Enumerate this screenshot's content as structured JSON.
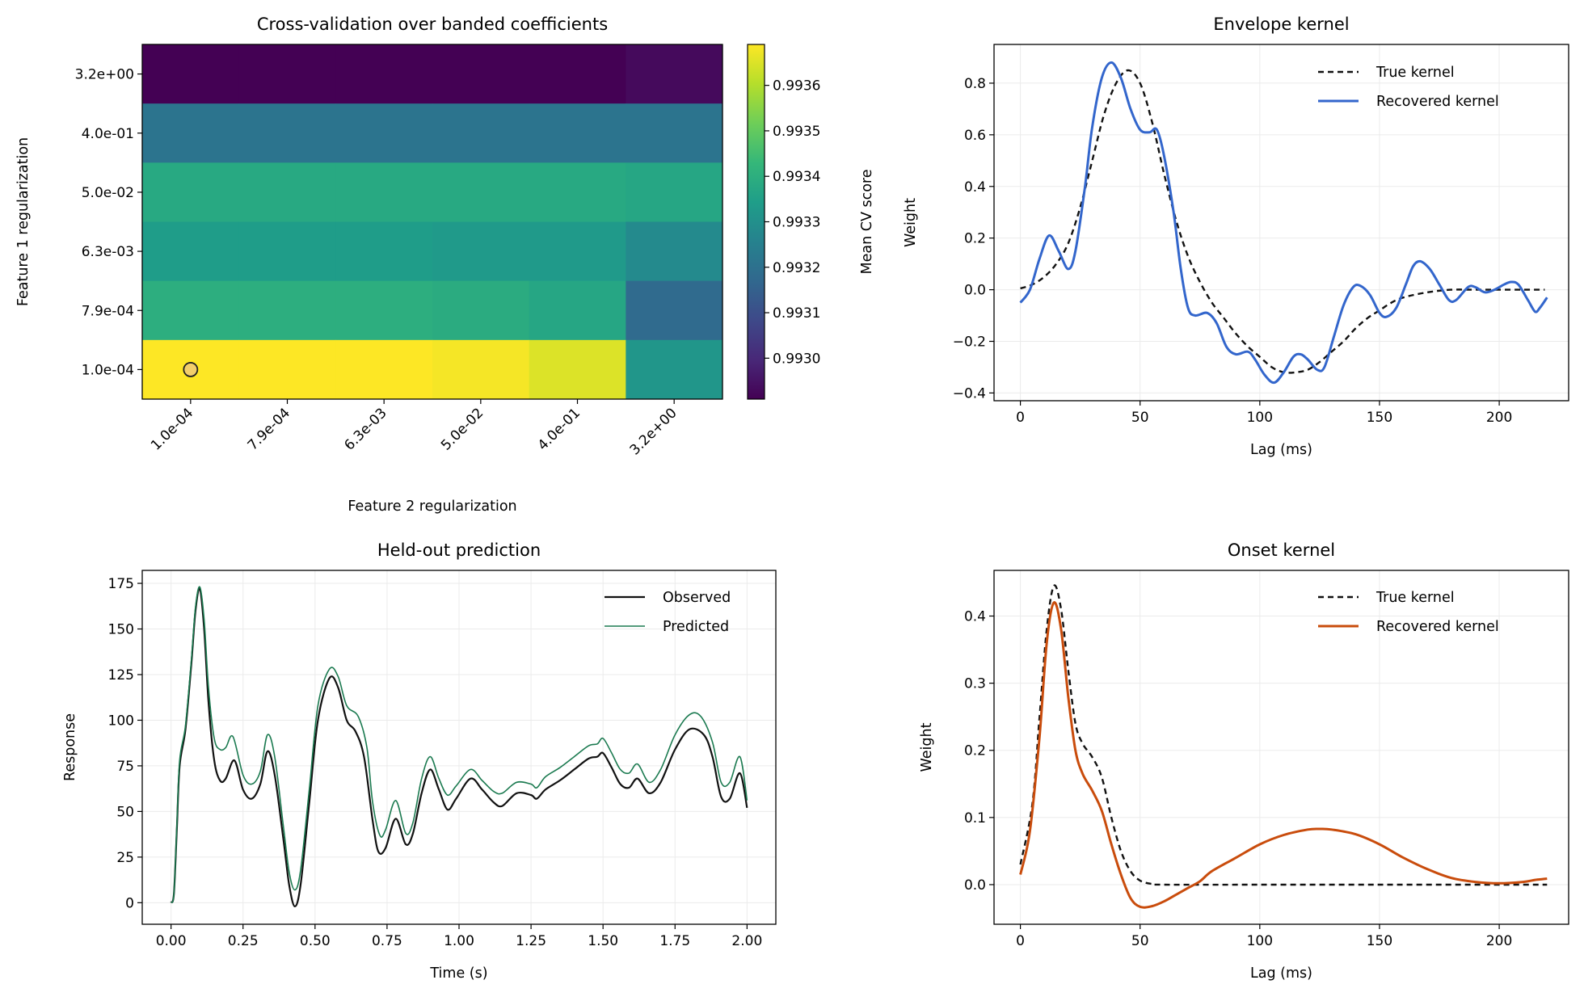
{
  "chart_data": [
    {
      "type": "heatmap",
      "title": "Cross-validation over banded coefficients",
      "xlabel": "Feature 2 regularization",
      "ylabel": "Feature 1 regularization",
      "x_categories": [
        "1.0e-04",
        "7.9e-04",
        "6.3e-03",
        "5.0e-02",
        "4.0e-01",
        "3.2e+00"
      ],
      "y_categories": [
        "3.2e+00",
        "4.0e-01",
        "5.0e-02",
        "6.3e-03",
        "7.9e-04",
        "1.0e-04"
      ],
      "values": [
        [
          0.99291,
          0.99291,
          0.99291,
          0.99291,
          0.99291,
          0.99293
        ],
        [
          0.99321,
          0.99321,
          0.99321,
          0.99321,
          0.99321,
          0.99321
        ],
        [
          0.99338,
          0.99338,
          0.99338,
          0.99338,
          0.99338,
          0.99337
        ],
        [
          0.99334,
          0.99334,
          0.99334,
          0.99333,
          0.99333,
          0.99328
        ],
        [
          0.9934,
          0.9934,
          0.9934,
          0.99339,
          0.99337,
          0.99318
        ],
        [
          0.99369,
          0.99369,
          0.99369,
          0.99368,
          0.99365,
          0.99332
        ]
      ],
      "best_marker": {
        "x": "1.0e-04",
        "y": "1.0e-04",
        "color": "#f2cf6b"
      },
      "colormap": "viridis",
      "colorbar": {
        "label": "Mean CV score",
        "range": [
          0.99291,
          0.99369
        ],
        "ticks": [
          "0.9930",
          "0.9931",
          "0.9932",
          "0.9933",
          "0.9934",
          "0.9935",
          "0.9936"
        ]
      }
    },
    {
      "type": "line",
      "title": "Envelope kernel",
      "xlabel": "Lag (ms)",
      "ylabel": "Weight",
      "xlim": [
        -11,
        229
      ],
      "ylim": [
        -0.43,
        0.95
      ],
      "xticks": [
        "0",
        "50",
        "100",
        "150",
        "200"
      ],
      "yticks": [
        "−0.4",
        "−0.2",
        "0.0",
        "0.2",
        "0.4",
        "0.6",
        "0.8"
      ],
      "grid": true,
      "legend": "top-right",
      "series": [
        {
          "name": "True kernel",
          "color": "#111111",
          "style": "dashed",
          "x": [
            0,
            5,
            10,
            15,
            20,
            25,
            30,
            35,
            40,
            45,
            50,
            55,
            60,
            65,
            70,
            75,
            80,
            85,
            90,
            95,
            100,
            105,
            110,
            115,
            120,
            125,
            130,
            135,
            140,
            145,
            150,
            155,
            160,
            170,
            180,
            190,
            200,
            210,
            219
          ],
          "y": [
            0.005,
            0.02,
            0.05,
            0.1,
            0.18,
            0.32,
            0.5,
            0.68,
            0.8,
            0.85,
            0.8,
            0.65,
            0.45,
            0.27,
            0.13,
            0.03,
            -0.05,
            -0.11,
            -0.17,
            -0.22,
            -0.26,
            -0.3,
            -0.32,
            -0.32,
            -0.31,
            -0.28,
            -0.24,
            -0.2,
            -0.15,
            -0.11,
            -0.08,
            -0.05,
            -0.03,
            -0.01,
            0,
            0,
            0,
            0,
            0
          ]
        },
        {
          "name": "Recovered kernel",
          "color": "#3366cc",
          "style": "solid",
          "x": [
            0,
            4,
            8,
            12,
            16,
            20,
            23,
            27,
            30,
            34,
            38,
            42,
            46,
            50,
            54,
            57,
            60,
            64,
            67,
            70,
            73,
            78,
            82,
            86,
            90,
            95,
            98,
            102,
            106,
            110,
            114,
            117,
            120,
            124,
            127,
            131,
            135,
            139,
            142,
            146,
            150,
            153,
            157,
            161,
            164,
            167,
            171,
            175,
            179,
            182,
            187,
            190,
            194,
            198,
            202,
            205,
            208,
            212,
            215,
            217,
            220
          ],
          "y": [
            -0.05,
            0.0,
            0.12,
            0.21,
            0.15,
            0.08,
            0.15,
            0.4,
            0.63,
            0.82,
            0.88,
            0.82,
            0.7,
            0.62,
            0.61,
            0.62,
            0.52,
            0.3,
            0.08,
            -0.07,
            -0.1,
            -0.09,
            -0.13,
            -0.22,
            -0.25,
            -0.24,
            -0.27,
            -0.33,
            -0.36,
            -0.32,
            -0.26,
            -0.25,
            -0.27,
            -0.31,
            -0.3,
            -0.18,
            -0.06,
            0.01,
            0.015,
            -0.02,
            -0.09,
            -0.105,
            -0.07,
            0.02,
            0.09,
            0.11,
            0.08,
            0.02,
            -0.04,
            -0.04,
            0.01,
            0.01,
            -0.01,
            0.0,
            0.02,
            0.03,
            0.02,
            -0.04,
            -0.085,
            -0.07,
            -0.03
          ]
        }
      ]
    },
    {
      "type": "line",
      "title": "Held-out prediction",
      "xlabel": "Time (s)",
      "ylabel": "Response",
      "xlim": [
        -0.1,
        2.1
      ],
      "ylim": [
        -11.8,
        182.1
      ],
      "xticks": [
        "0.00",
        "0.25",
        "0.50",
        "0.75",
        "1.00",
        "1.25",
        "1.50",
        "1.75",
        "2.00"
      ],
      "yticks": [
        "0",
        "25",
        "50",
        "75",
        "100",
        "125",
        "150",
        "175"
      ],
      "grid": true,
      "legend": "top-right",
      "series": [
        {
          "name": "Observed",
          "color": "#111111",
          "style": "solid",
          "x": [
            0,
            0.01,
            0.02,
            0.03,
            0.05,
            0.07,
            0.085,
            0.1,
            0.115,
            0.13,
            0.15,
            0.17,
            0.19,
            0.22,
            0.25,
            0.28,
            0.31,
            0.335,
            0.36,
            0.39,
            0.41,
            0.43,
            0.45,
            0.48,
            0.51,
            0.55,
            0.58,
            0.61,
            0.64,
            0.67,
            0.7,
            0.72,
            0.745,
            0.78,
            0.815,
            0.84,
            0.87,
            0.9,
            0.93,
            0.96,
            0.99,
            1.04,
            1.08,
            1.12,
            1.15,
            1.2,
            1.25,
            1.27,
            1.3,
            1.35,
            1.4,
            1.45,
            1.48,
            1.5,
            1.53,
            1.56,
            1.59,
            1.62,
            1.66,
            1.7,
            1.75,
            1.8,
            1.85,
            1.88,
            1.91,
            1.94,
            1.975,
            2.0
          ],
          "y": [
            0,
            5,
            40,
            75,
            95,
            130,
            160,
            172,
            150,
            110,
            78,
            67,
            68,
            78,
            62,
            57,
            65,
            83,
            70,
            35,
            10,
            -2,
            10,
            55,
            100,
            123,
            118,
            100,
            94,
            80,
            45,
            28,
            30,
            46,
            32,
            38,
            60,
            73,
            62,
            51,
            57,
            68,
            62,
            55,
            53,
            60,
            59,
            57,
            62,
            67,
            73,
            79,
            80,
            82,
            74,
            65,
            63,
            68,
            60,
            66,
            84,
            95,
            92,
            80,
            58,
            57,
            71,
            52
          ]
        },
        {
          "name": "Predicted",
          "color": "#1b7a50",
          "style": "solid",
          "x": [
            0,
            0.01,
            0.02,
            0.03,
            0.05,
            0.07,
            0.085,
            0.1,
            0.115,
            0.13,
            0.15,
            0.17,
            0.19,
            0.215,
            0.25,
            0.28,
            0.31,
            0.335,
            0.36,
            0.39,
            0.41,
            0.43,
            0.45,
            0.48,
            0.51,
            0.55,
            0.58,
            0.61,
            0.65,
            0.68,
            0.7,
            0.725,
            0.745,
            0.78,
            0.815,
            0.84,
            0.87,
            0.9,
            0.93,
            0.96,
            0.99,
            1.04,
            1.08,
            1.12,
            1.15,
            1.2,
            1.25,
            1.27,
            1.3,
            1.35,
            1.4,
            1.45,
            1.48,
            1.5,
            1.53,
            1.56,
            1.59,
            1.62,
            1.66,
            1.7,
            1.75,
            1.8,
            1.84,
            1.88,
            1.91,
            1.94,
            1.975,
            2.0
          ],
          "y": [
            0,
            5,
            42,
            78,
            97,
            132,
            162,
            173,
            155,
            118,
            90,
            84,
            85,
            91,
            70,
            65,
            72,
            92,
            80,
            42,
            17,
            7,
            18,
            62,
            108,
            128,
            124,
            108,
            102,
            85,
            55,
            37,
            40,
            56,
            38,
            44,
            68,
            80,
            68,
            59,
            64,
            73,
            67,
            61,
            60,
            66,
            65,
            63,
            69,
            74,
            80,
            86,
            87,
            90,
            82,
            73,
            71,
            76,
            66,
            73,
            92,
            103,
            102,
            88,
            66,
            66,
            80,
            56
          ]
        }
      ]
    },
    {
      "type": "line",
      "title": "Onset kernel",
      "xlabel": "Lag (ms)",
      "ylabel": "Weight",
      "xlim": [
        -11,
        229
      ],
      "ylim": [
        -0.059,
        0.468
      ],
      "xticks": [
        "0",
        "50",
        "100",
        "150",
        "200"
      ],
      "yticks": [
        "0.0",
        "0.1",
        "0.2",
        "0.3",
        "0.4"
      ],
      "grid": true,
      "legend": "top-right",
      "series": [
        {
          "name": "True kernel",
          "color": "#111111",
          "style": "dashed",
          "x": [
            0,
            5,
            8,
            11,
            14,
            17,
            20,
            23,
            26,
            30,
            34,
            38,
            42,
            46,
            50,
            55,
            60,
            100,
            150,
            200,
            220
          ],
          "y": [
            0.03,
            0.12,
            0.25,
            0.38,
            0.445,
            0.41,
            0.32,
            0.24,
            0.21,
            0.19,
            0.16,
            0.1,
            0.05,
            0.02,
            0.006,
            0.001,
            0,
            0,
            0,
            0,
            0
          ]
        },
        {
          "name": "Recovered kernel",
          "color": "#c94c0c",
          "style": "solid",
          "x": [
            0,
            4,
            8,
            11,
            14,
            17,
            20,
            23,
            26,
            30,
            34,
            38,
            42,
            46,
            50,
            55,
            60,
            65,
            70,
            75,
            80,
            90,
            100,
            110,
            120,
            125,
            130,
            140,
            150,
            160,
            170,
            180,
            190,
            200,
            210,
            215,
            220
          ],
          "y": [
            0.015,
            0.08,
            0.22,
            0.36,
            0.42,
            0.38,
            0.28,
            0.2,
            0.165,
            0.14,
            0.11,
            0.06,
            0.015,
            -0.02,
            -0.033,
            -0.032,
            -0.025,
            -0.015,
            -0.005,
            0.005,
            0.02,
            0.04,
            0.06,
            0.074,
            0.082,
            0.083,
            0.082,
            0.075,
            0.06,
            0.04,
            0.023,
            0.01,
            0.004,
            0.002,
            0.004,
            0.007,
            0.009
          ]
        }
      ]
    }
  ]
}
